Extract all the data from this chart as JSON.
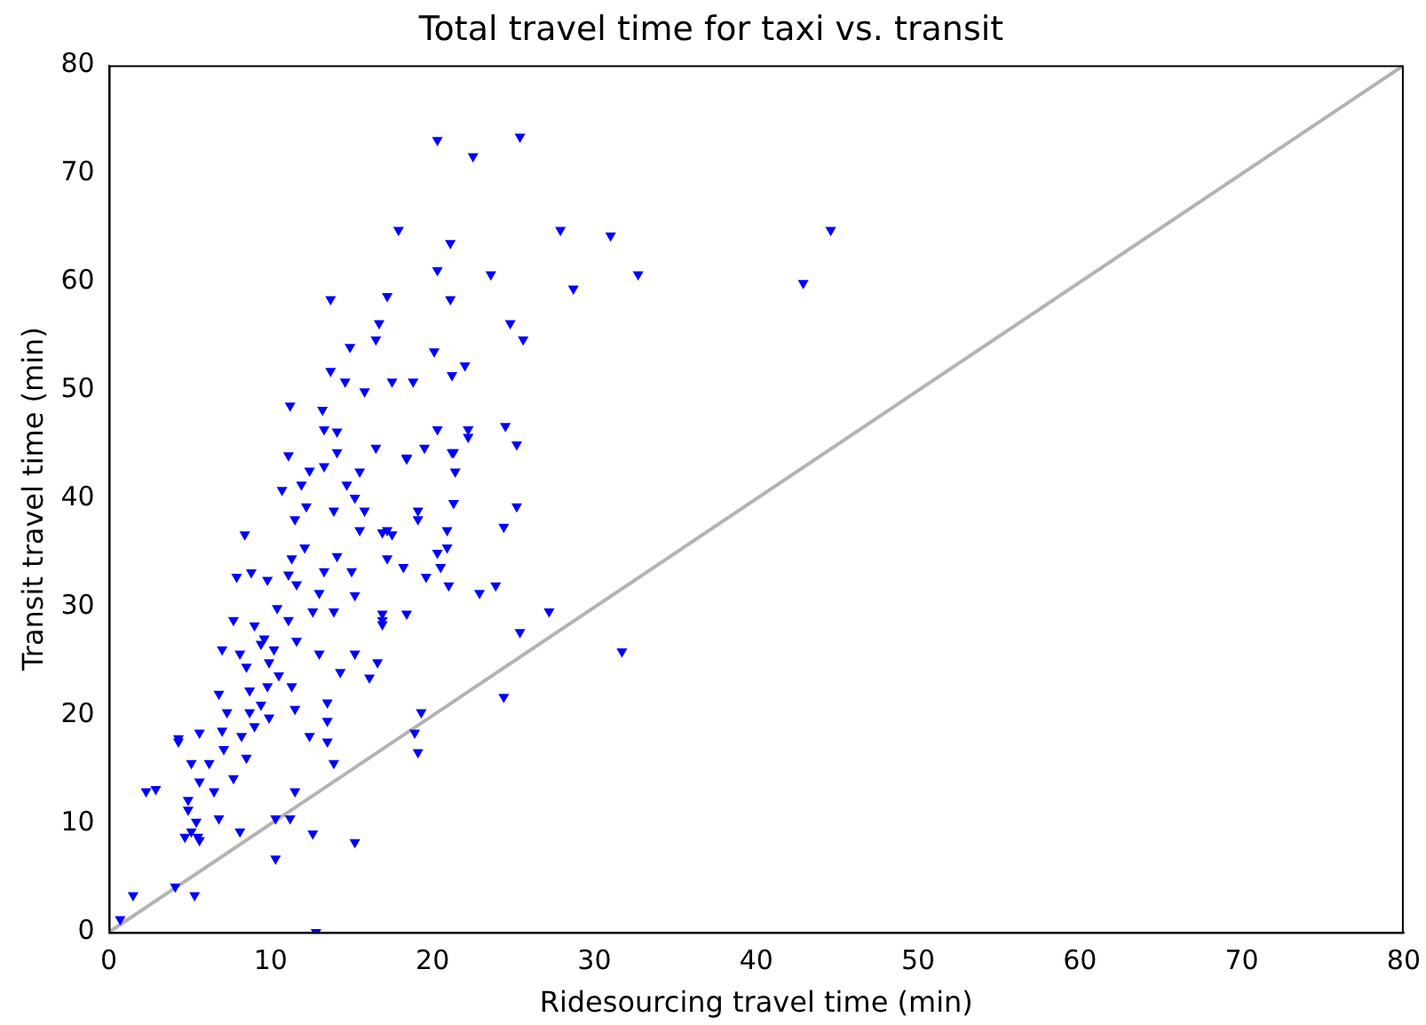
{
  "chart_data": {
    "type": "scatter",
    "title": "Total travel time for taxi vs. transit",
    "xlabel": "Ridesourcing travel time (min)",
    "ylabel": "Transit travel time (min)",
    "xlim": [
      0,
      80
    ],
    "ylim": [
      0,
      80
    ],
    "xticks": [
      0,
      10,
      20,
      30,
      40,
      50,
      60,
      70,
      80
    ],
    "yticks": [
      0,
      10,
      20,
      30,
      40,
      50,
      60,
      70,
      80
    ],
    "grid": false,
    "legend": false,
    "marker": "triangle",
    "series": [
      {
        "color": "#0000ff",
        "x": [
          0.7,
          1.5,
          2.3,
          2.9,
          4.1,
          5.3,
          4.3,
          5.1,
          5.5,
          10.3,
          12.8,
          15.2,
          12.6,
          11.5,
          10.3,
          11.2,
          8.1,
          20.3,
          22.5,
          25.4,
          17.9,
          21.1,
          27.9,
          31.0,
          20.3,
          23.6,
          28.7,
          13.7,
          17.2,
          21.1,
          16.7,
          24.8,
          16.5,
          25.6,
          14.9,
          20.1,
          13.7,
          14.6,
          15.8,
          17.5,
          18.8,
          21.2,
          22.0,
          24.5,
          25.2,
          11.2,
          13.2,
          13.3,
          14.1,
          14.1,
          16.5,
          11.1,
          18.4,
          19.5,
          20.3,
          22.2,
          21.2,
          22.2,
          42.9,
          44.6,
          32.7,
          27.2,
          25.4,
          31.7,
          24.4,
          19.3,
          18.9,
          19.1,
          25.2,
          24.4,
          23.9,
          22.9,
          21.0,
          19.6,
          18.2,
          17.2,
          20.5,
          20.3,
          20.9,
          20.9,
          16.9,
          17.5,
          19.1,
          19.1,
          21.3,
          21.4,
          21.3,
          18.4,
          18.4,
          16.9,
          16.9,
          16.6,
          12.4,
          13.3,
          15.5,
          10.7,
          11.9,
          14.7,
          15.2,
          15.8,
          11.5,
          12.2,
          13.9,
          8.4,
          15.5,
          17.2,
          12.1,
          11.3,
          14.1,
          7.9,
          8.8,
          9.8,
          11.1,
          11.6,
          13.3,
          15.0,
          13.0,
          15.2,
          10.4,
          12.6,
          13.9,
          7.7,
          11.1,
          16.9,
          9.4,
          11.6,
          7.0,
          8.1,
          8.5,
          9.9,
          13.0,
          14.3,
          15.2,
          16.1,
          6.8,
          8.7,
          9.8,
          11.3,
          13.5,
          7.3,
          8.7,
          9.0,
          11.5,
          12.4,
          13.5,
          13.5,
          4.3,
          5.6,
          7.0,
          7.1,
          8.5,
          5.1,
          6.2,
          7.7,
          5.6,
          4.9,
          6.5,
          4.9,
          5.4,
          6.8,
          4.7,
          5.6,
          13.9,
          9.0,
          9.6,
          10.2,
          10.5,
          9.4,
          9.9,
          8.2
        ],
        "values": [
          1.2,
          3.4,
          13.0,
          13.2,
          4.2,
          3.4,
          17.9,
          9.3,
          8.8,
          6.8,
          0,
          8.3,
          9.1,
          13.0,
          10.5,
          10.5,
          9.3,
          73.1,
          71.6,
          73.4,
          64.8,
          63.6,
          64.8,
          64.3,
          61.1,
          60.7,
          59.4,
          58.4,
          58.7,
          58.4,
          56.2,
          56.2,
          54.7,
          54.7,
          54.0,
          53.6,
          51.8,
          50.8,
          49.9,
          50.8,
          50.8,
          51.4,
          52.3,
          46.7,
          45.0,
          48.6,
          48.2,
          46.4,
          46.2,
          44.3,
          44.7,
          44.0,
          43.8,
          44.7,
          46.4,
          46.4,
          44.3,
          45.7,
          59.9,
          64.8,
          60.7,
          29.6,
          27.7,
          25.9,
          21.7,
          20.3,
          18.4,
          16.6,
          39.3,
          37.4,
          32.0,
          31.3,
          32.0,
          32.8,
          33.7,
          34.5,
          33.7,
          35.0,
          35.5,
          37.1,
          36.9,
          36.7,
          38.1,
          38.9,
          39.6,
          42.5,
          44.3,
          43.7,
          29.4,
          29.4,
          28.4,
          24.9,
          42.6,
          43.0,
          42.5,
          40.8,
          41.3,
          41.3,
          40.1,
          38.9,
          38.1,
          39.3,
          38.9,
          36.7,
          37.1,
          37.1,
          35.5,
          34.5,
          34.7,
          32.8,
          33.2,
          32.5,
          33.0,
          32.1,
          33.3,
          33.3,
          31.3,
          31.1,
          29.9,
          29.6,
          29.6,
          28.8,
          28.8,
          28.8,
          26.6,
          26.9,
          26.1,
          25.7,
          24.5,
          24.9,
          25.7,
          24.0,
          25.7,
          23.5,
          22.0,
          22.3,
          22.7,
          22.7,
          21.2,
          20.3,
          20.3,
          19.0,
          20.6,
          18.1,
          19.5,
          17.6,
          17.6,
          18.4,
          18.6,
          16.9,
          16.1,
          15.6,
          15.6,
          14.2,
          13.9,
          12.2,
          13.0,
          11.3,
          10.2,
          10.5,
          8.8,
          8.5,
          15.6,
          28.3,
          27.1,
          26.1,
          23.7,
          21.0,
          19.8,
          18.1
        ]
      },
      {
        "type": "line",
        "color": "#b3b3b3",
        "x": [
          0,
          80
        ],
        "values": [
          0,
          80
        ],
        "marker": "none"
      }
    ]
  }
}
